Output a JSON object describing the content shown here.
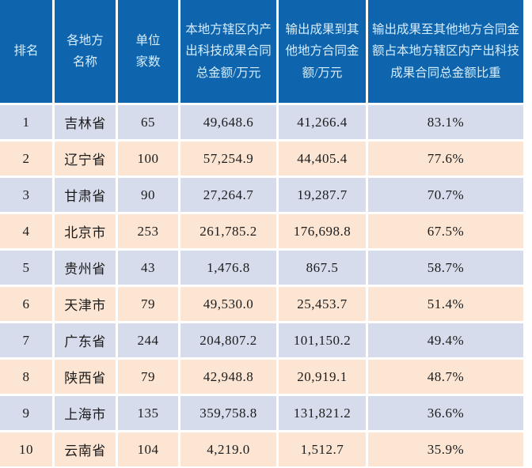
{
  "colors": {
    "header_bg": "#0f65ad",
    "header_text": "#d5edfc",
    "row_odd_bg": "#d6dcec",
    "row_even_bg": "#fce5d3",
    "gridline": "#ffffff",
    "body_text": "#1c1c1c"
  },
  "header_labels": {
    "rank": "排名",
    "region": "各地方\n名称",
    "units": "单位\n家数",
    "local_total": "本地方辖区内产\n出科技成果合同\n总金额/万元",
    "output_amount": "输出成果到其\n他地方合同金\n额/万元",
    "output_ratio": "输出成果至其他地方合同金\n额占本地方辖区内产出科技\n成果合同总金额比重"
  },
  "chart_data": {
    "type": "table",
    "columns": [
      "排名",
      "各地方名称",
      "单位家数",
      "本地方辖区内产出科技成果合同总金额/万元",
      "输出成果到其他地方合同金额/万元",
      "输出成果至其他地方合同金额占本地方辖区内产出科技成果合同总金额比重"
    ],
    "rows": [
      [
        "1",
        "吉林省",
        "65",
        "49,648.6",
        "41,266.4",
        "83.1%"
      ],
      [
        "2",
        "辽宁省",
        "100",
        "57,254.9",
        "44,405.4",
        "77.6%"
      ],
      [
        "3",
        "甘肃省",
        "90",
        "27,264.7",
        "19,287.7",
        "70.7%"
      ],
      [
        "4",
        "北京市",
        "253",
        "261,785.2",
        "176,698.8",
        "67.5%"
      ],
      [
        "5",
        "贵州省",
        "43",
        "1,476.8",
        "867.5",
        "58.7%"
      ],
      [
        "6",
        "天津市",
        "79",
        "49,530.0",
        "25,453.7",
        "51.4%"
      ],
      [
        "7",
        "广东省",
        "244",
        "204,807.2",
        "101,150.2",
        "49.4%"
      ],
      [
        "8",
        "陕西省",
        "79",
        "42,948.8",
        "20,919.1",
        "48.7%"
      ],
      [
        "9",
        "上海市",
        "135",
        "359,758.8",
        "131,821.2",
        "36.6%"
      ],
      [
        "10",
        "云南省",
        "104",
        "4,219.0",
        "1,512.7",
        "35.9%"
      ]
    ]
  }
}
